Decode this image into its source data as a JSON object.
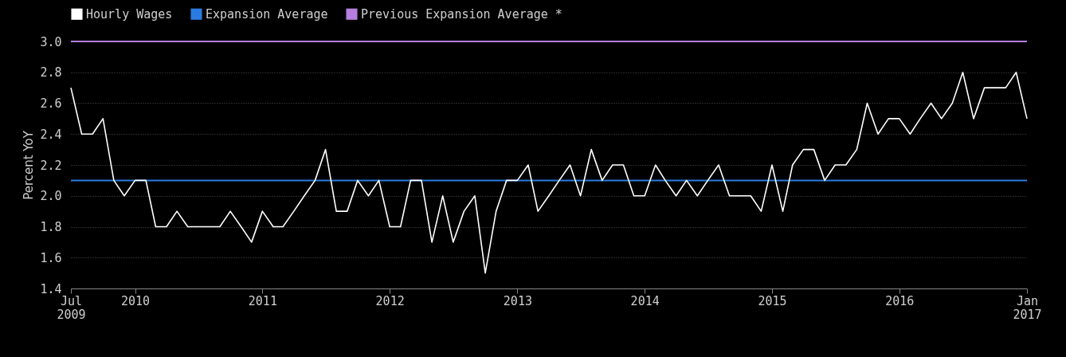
{
  "chart_data": {
    "type": "line",
    "ylabel": "Percent YoY",
    "x": [
      "2009-07",
      "2009-08",
      "2009-09",
      "2009-10",
      "2009-11",
      "2009-12",
      "2010-01",
      "2010-02",
      "2010-03",
      "2010-04",
      "2010-05",
      "2010-06",
      "2010-07",
      "2010-08",
      "2010-09",
      "2010-10",
      "2010-11",
      "2010-12",
      "2011-01",
      "2011-02",
      "2011-03",
      "2011-04",
      "2011-05",
      "2011-06",
      "2011-07",
      "2011-08",
      "2011-09",
      "2011-10",
      "2011-11",
      "2011-12",
      "2012-01",
      "2012-02",
      "2012-03",
      "2012-04",
      "2012-05",
      "2012-06",
      "2012-07",
      "2012-08",
      "2012-09",
      "2012-10",
      "2012-11",
      "2012-12",
      "2013-01",
      "2013-02",
      "2013-03",
      "2013-04",
      "2013-05",
      "2013-06",
      "2013-07",
      "2013-08",
      "2013-09",
      "2013-10",
      "2013-11",
      "2013-12",
      "2014-01",
      "2014-02",
      "2014-03",
      "2014-04",
      "2014-05",
      "2014-06",
      "2014-07",
      "2014-08",
      "2014-09",
      "2014-10",
      "2014-11",
      "2014-12",
      "2015-01",
      "2015-02",
      "2015-03",
      "2015-04",
      "2015-05",
      "2015-06",
      "2015-07",
      "2015-08",
      "2015-09",
      "2015-10",
      "2015-11",
      "2015-12",
      "2016-01",
      "2016-02",
      "2016-03",
      "2016-04",
      "2016-05",
      "2016-06",
      "2016-07",
      "2016-08",
      "2016-09",
      "2016-10",
      "2016-11",
      "2016-12",
      "2017-01"
    ],
    "series": [
      {
        "name": "Hourly Wages",
        "color": "#ffffff",
        "values": [
          2.7,
          2.4,
          2.4,
          2.5,
          2.1,
          2.0,
          2.1,
          2.1,
          1.8,
          1.8,
          1.9,
          1.8,
          1.8,
          1.8,
          1.8,
          1.9,
          1.8,
          1.7,
          1.9,
          1.8,
          1.8,
          1.9,
          2.0,
          2.1,
          2.3,
          1.9,
          1.9,
          2.1,
          2.0,
          2.1,
          1.8,
          1.8,
          2.1,
          2.1,
          1.7,
          2.0,
          1.7,
          1.9,
          2.0,
          1.5,
          1.9,
          2.1,
          2.1,
          2.2,
          1.9,
          2.0,
          2.1,
          2.2,
          2.0,
          2.3,
          2.1,
          2.2,
          2.2,
          2.0,
          2.0,
          2.2,
          2.1,
          2.0,
          2.1,
          2.0,
          2.1,
          2.2,
          2.0,
          2.0,
          2.0,
          1.9,
          2.2,
          1.9,
          2.2,
          2.3,
          2.3,
          2.1,
          2.2,
          2.2,
          2.3,
          2.6,
          2.4,
          2.5,
          2.5,
          2.4,
          2.5,
          2.6,
          2.5,
          2.6,
          2.8,
          2.5,
          2.7,
          2.7,
          2.7,
          2.8,
          2.5
        ]
      }
    ],
    "ref_lines": [
      {
        "axis": "y",
        "value": 2.1,
        "label": "Expansion Average",
        "color": "#2a7be0"
      },
      {
        "axis": "y",
        "value": 3.0,
        "label": "Previous Expansion Average *",
        "color": "#b57ee0"
      }
    ],
    "xlim": [
      "2009-07",
      "2017-01"
    ],
    "xticks": [
      {
        "value": "2009-07",
        "label": "Jul 2009"
      },
      {
        "value": "2010-01",
        "label": "2010"
      },
      {
        "value": "2011-01",
        "label": "2011"
      },
      {
        "value": "2012-01",
        "label": "2012"
      },
      {
        "value": "2013-01",
        "label": "2013"
      },
      {
        "value": "2014-01",
        "label": "2014"
      },
      {
        "value": "2015-01",
        "label": "2015"
      },
      {
        "value": "2016-01",
        "label": "2016"
      },
      {
        "value": "2017-01",
        "label": "Jan 2017"
      }
    ],
    "ylim": [
      1.4,
      3.0
    ],
    "yticks": [
      1.4,
      1.6,
      1.8,
      {
        "value": 2.0,
        "label": "2.0"
      },
      2.2,
      2.4,
      2.6,
      2.8,
      {
        "value": 3.0,
        "label": "3.0"
      }
    ],
    "grid": "y",
    "legend": "top left",
    "marker": "none",
    "line_style": "solid"
  }
}
